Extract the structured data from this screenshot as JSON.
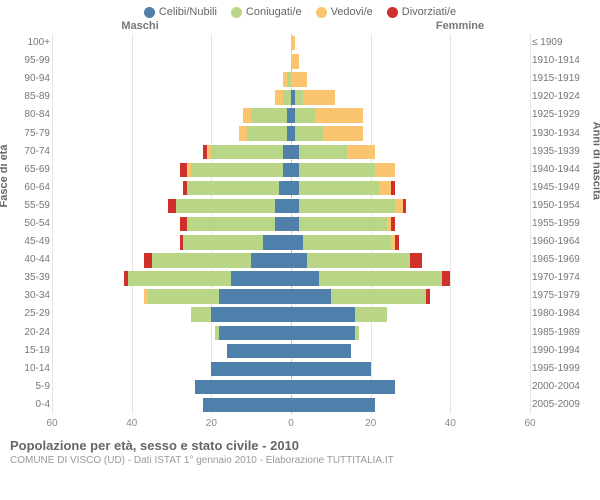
{
  "legend": [
    {
      "label": "Celibi/Nubili",
      "color": "#4f80ab"
    },
    {
      "label": "Coniugati/e",
      "color": "#b9d586"
    },
    {
      "label": "Vedovi/e",
      "color": "#fac56e"
    },
    {
      "label": "Divorziati/e",
      "color": "#cf302b"
    }
  ],
  "headers": {
    "left": "Maschi",
    "right": "Femmine"
  },
  "y_left_title": "Fasce di età",
  "y_right_title": "Anni di nascita",
  "chart": {
    "type": "population-pyramid",
    "xlim": 60,
    "xticks": [
      60,
      40,
      20,
      0,
      20,
      40,
      60
    ],
    "background_color": "#ffffff",
    "grid_color": "#e5e5e5",
    "series_colors": {
      "single": "#4f80ab",
      "married": "#b9d586",
      "widowed": "#fac56e",
      "divorced": "#cf302b"
    },
    "rows": [
      {
        "age": "100+",
        "birth": "≤ 1909",
        "m": {
          "s": 0,
          "m": 0,
          "w": 0,
          "d": 0
        },
        "f": {
          "s": 0,
          "m": 0,
          "w": 1,
          "d": 0
        }
      },
      {
        "age": "95-99",
        "birth": "1910-1914",
        "m": {
          "s": 0,
          "m": 0,
          "w": 0,
          "d": 0
        },
        "f": {
          "s": 0,
          "m": 0,
          "w": 2,
          "d": 0
        }
      },
      {
        "age": "90-94",
        "birth": "1915-1919",
        "m": {
          "s": 0,
          "m": 1,
          "w": 1,
          "d": 0
        },
        "f": {
          "s": 0,
          "m": 0,
          "w": 4,
          "d": 0
        }
      },
      {
        "age": "85-89",
        "birth": "1920-1924",
        "m": {
          "s": 0,
          "m": 2,
          "w": 2,
          "d": 0
        },
        "f": {
          "s": 1,
          "m": 2,
          "w": 8,
          "d": 0
        }
      },
      {
        "age": "80-84",
        "birth": "1925-1929",
        "m": {
          "s": 1,
          "m": 9,
          "w": 2,
          "d": 0
        },
        "f": {
          "s": 1,
          "m": 5,
          "w": 12,
          "d": 0
        }
      },
      {
        "age": "75-79",
        "birth": "1930-1934",
        "m": {
          "s": 1,
          "m": 10,
          "w": 2,
          "d": 0
        },
        "f": {
          "s": 1,
          "m": 7,
          "w": 10,
          "d": 0
        }
      },
      {
        "age": "70-74",
        "birth": "1935-1939",
        "m": {
          "s": 2,
          "m": 18,
          "w": 1,
          "d": 1
        },
        "f": {
          "s": 2,
          "m": 12,
          "w": 7,
          "d": 0
        }
      },
      {
        "age": "65-69",
        "birth": "1940-1944",
        "m": {
          "s": 2,
          "m": 23,
          "w": 1,
          "d": 2
        },
        "f": {
          "s": 2,
          "m": 19,
          "w": 5,
          "d": 0
        }
      },
      {
        "age": "60-64",
        "birth": "1945-1949",
        "m": {
          "s": 3,
          "m": 23,
          "w": 0,
          "d": 1
        },
        "f": {
          "s": 2,
          "m": 20,
          "w": 3,
          "d": 1
        }
      },
      {
        "age": "55-59",
        "birth": "1950-1954",
        "m": {
          "s": 4,
          "m": 25,
          "w": 0,
          "d": 2
        },
        "f": {
          "s": 2,
          "m": 24,
          "w": 2,
          "d": 1
        }
      },
      {
        "age": "50-54",
        "birth": "1955-1959",
        "m": {
          "s": 4,
          "m": 22,
          "w": 0,
          "d": 2
        },
        "f": {
          "s": 2,
          "m": 22,
          "w": 1,
          "d": 1
        }
      },
      {
        "age": "45-49",
        "birth": "1960-1964",
        "m": {
          "s": 7,
          "m": 20,
          "w": 0,
          "d": 1
        },
        "f": {
          "s": 3,
          "m": 22,
          "w": 1,
          "d": 1
        }
      },
      {
        "age": "40-44",
        "birth": "1965-1969",
        "m": {
          "s": 10,
          "m": 25,
          "w": 0,
          "d": 2
        },
        "f": {
          "s": 4,
          "m": 26,
          "w": 0,
          "d": 3
        }
      },
      {
        "age": "35-39",
        "birth": "1970-1974",
        "m": {
          "s": 15,
          "m": 26,
          "w": 0,
          "d": 1
        },
        "f": {
          "s": 7,
          "m": 31,
          "w": 0,
          "d": 2
        }
      },
      {
        "age": "30-34",
        "birth": "1975-1979",
        "m": {
          "s": 18,
          "m": 18,
          "w": 1,
          "d": 0
        },
        "f": {
          "s": 10,
          "m": 24,
          "w": 0,
          "d": 1
        }
      },
      {
        "age": "25-29",
        "birth": "1980-1984",
        "m": {
          "s": 20,
          "m": 5,
          "w": 0,
          "d": 0
        },
        "f": {
          "s": 16,
          "m": 8,
          "w": 0,
          "d": 0
        }
      },
      {
        "age": "20-24",
        "birth": "1985-1989",
        "m": {
          "s": 18,
          "m": 1,
          "w": 0,
          "d": 0
        },
        "f": {
          "s": 16,
          "m": 1,
          "w": 0,
          "d": 0
        }
      },
      {
        "age": "15-19",
        "birth": "1990-1994",
        "m": {
          "s": 16,
          "m": 0,
          "w": 0,
          "d": 0
        },
        "f": {
          "s": 15,
          "m": 0,
          "w": 0,
          "d": 0
        }
      },
      {
        "age": "10-14",
        "birth": "1995-1999",
        "m": {
          "s": 20,
          "m": 0,
          "w": 0,
          "d": 0
        },
        "f": {
          "s": 20,
          "m": 0,
          "w": 0,
          "d": 0
        }
      },
      {
        "age": "5-9",
        "birth": "2000-2004",
        "m": {
          "s": 24,
          "m": 0,
          "w": 0,
          "d": 0
        },
        "f": {
          "s": 26,
          "m": 0,
          "w": 0,
          "d": 0
        }
      },
      {
        "age": "0-4",
        "birth": "2005-2009",
        "m": {
          "s": 22,
          "m": 0,
          "w": 0,
          "d": 0
        },
        "f": {
          "s": 21,
          "m": 0,
          "w": 0,
          "d": 0
        }
      }
    ]
  },
  "title": "Popolazione per età, sesso e stato civile - 2010",
  "subtitle": "COMUNE DI VISCO (UD) - Dati ISTAT 1° gennaio 2010 - Elaborazione TUTTITALIA.IT"
}
